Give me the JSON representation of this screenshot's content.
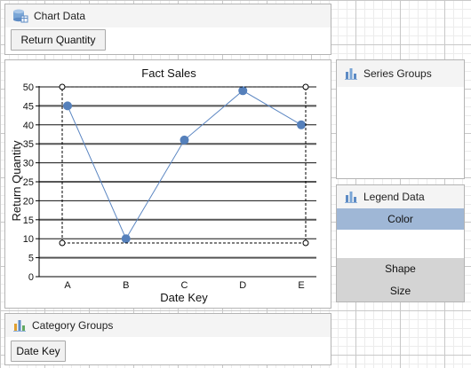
{
  "chart_data_panel": {
    "title": "Chart Data",
    "icon": "database-icon",
    "value_button": "Return Quantity"
  },
  "series_groups_panel": {
    "title": "Series Groups",
    "icon": "bar-chart-icon"
  },
  "legend_panel": {
    "title": "Legend Data",
    "icon": "bar-chart-icon",
    "items": [
      {
        "label": "Color",
        "selected": true,
        "bg": "#9fb7d6"
      },
      {
        "label": "",
        "selected": false,
        "bg": "#ffffff"
      },
      {
        "label": "Shape",
        "selected": false,
        "bg": "#d4d4d4"
      },
      {
        "label": "Size",
        "selected": false,
        "bg": "#d4d4d4"
      }
    ]
  },
  "category_groups_panel": {
    "title": "Category Groups",
    "icon": "bar-chart-icon",
    "group_button": "Date Key"
  },
  "colors": {
    "series": "#5b86c2",
    "marker": "#5580bb"
  },
  "chart_data": {
    "type": "line",
    "title": "Fact Sales",
    "xlabel": "Date Key",
    "ylabel": "Return Quantity",
    "categories": [
      "A",
      "B",
      "C",
      "D",
      "E"
    ],
    "values": [
      45,
      10,
      36,
      49,
      40
    ],
    "ylim": [
      0,
      50
    ],
    "yticks": [
      "0",
      "5",
      "10",
      "15",
      "20",
      "25",
      "30",
      "35",
      "40",
      "45",
      "50"
    ],
    "grid": true,
    "legend": "none"
  }
}
